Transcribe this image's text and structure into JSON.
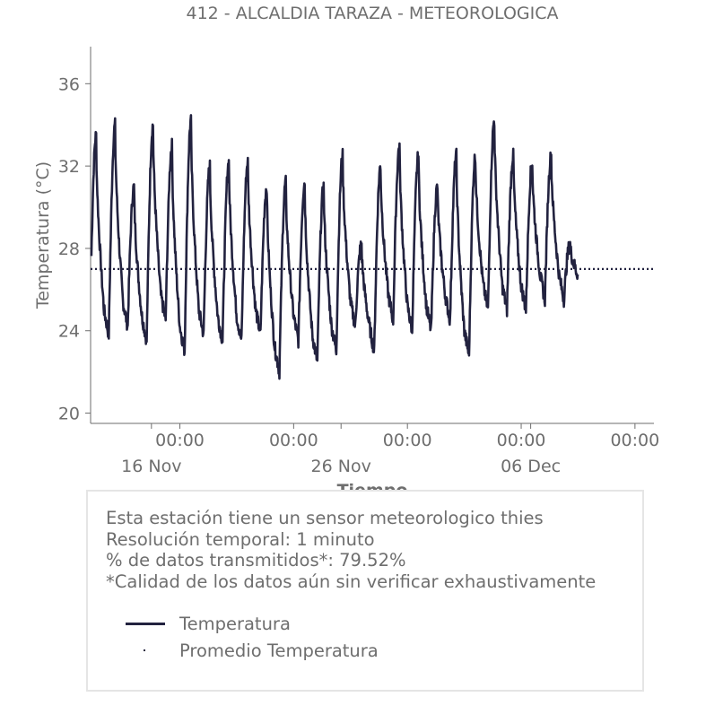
{
  "chart_data": {
    "type": "line",
    "title": "412 - ALCALDIA TARAZA - METEOROLOGICA",
    "xlabel": "Tiempo",
    "ylabel": "Temperatura (°C)",
    "ylim": [
      19.5,
      37.8
    ],
    "yticks": [
      20,
      24,
      28,
      32,
      36
    ],
    "xlim": [
      "2024-11-13T07:00",
      "2024-12-13T00:00"
    ],
    "xtick_hour_labels": [
      "00:00",
      "00:00",
      "00:00",
      "00:00",
      "00:00"
    ],
    "xtick_date_labels": [
      "16 Nov",
      "26 Nov",
      "06 Dec"
    ],
    "grid": false,
    "series": [
      {
        "name": "Temperatura",
        "style": "solid",
        "color": "#22223f",
        "daily_extremes": [
          {
            "date": "2024-11-13",
            "min": 24.0,
            "max": 33.5
          },
          {
            "date": "2024-11-14",
            "min": 23.8,
            "max": 34.0
          },
          {
            "date": "2024-11-15",
            "min": 24.2,
            "max": 31.0
          },
          {
            "date": "2024-11-16",
            "min": 23.5,
            "max": 34.0
          },
          {
            "date": "2024-11-17",
            "min": 24.5,
            "max": 33.0
          },
          {
            "date": "2024-11-18",
            "min": 23.0,
            "max": 34.2
          },
          {
            "date": "2024-11-19",
            "min": 23.8,
            "max": 32.0
          },
          {
            "date": "2024-11-20",
            "min": 23.5,
            "max": 32.2
          },
          {
            "date": "2024-11-21",
            "min": 23.5,
            "max": 32.2
          },
          {
            "date": "2024-11-22",
            "min": 23.8,
            "max": 31.0
          },
          {
            "date": "2024-11-23",
            "min": 22.0,
            "max": 31.2
          },
          {
            "date": "2024-11-24",
            "min": 23.5,
            "max": 31.2
          },
          {
            "date": "2024-11-25",
            "min": 22.5,
            "max": 31.0
          },
          {
            "date": "2024-11-26",
            "min": 23.0,
            "max": 32.5
          },
          {
            "date": "2024-11-27",
            "min": 24.2,
            "max": 28.2
          },
          {
            "date": "2024-11-28",
            "min": 23.0,
            "max": 32.0
          },
          {
            "date": "2024-11-29",
            "min": 24.5,
            "max": 33.0
          },
          {
            "date": "2024-11-30",
            "min": 24.0,
            "max": 32.5
          },
          {
            "date": "2024-12-01",
            "min": 24.0,
            "max": 31.0
          },
          {
            "date": "2024-12-02",
            "min": 24.5,
            "max": 32.5
          },
          {
            "date": "2024-12-03",
            "min": 22.8,
            "max": 32.5
          },
          {
            "date": "2024-12-04",
            "min": 25.0,
            "max": 34.2
          },
          {
            "date": "2024-12-05",
            "min": 25.0,
            "max": 32.5
          },
          {
            "date": "2024-12-06",
            "min": 25.0,
            "max": 32.2
          },
          {
            "date": "2024-12-07",
            "min": 25.5,
            "max": 32.5
          },
          {
            "date": "2024-12-08",
            "min": 25.5,
            "max": 28.2
          }
        ]
      },
      {
        "name": "Promedio Temperatura",
        "style": "dotted",
        "color": "#22223f",
        "value": 27.0
      }
    ]
  },
  "info": {
    "lines": [
      "Esta estación tiene un sensor meteorologico thies",
      "Resolución temporal: 1 minuto",
      "% de datos transmitidos*: 79.52%",
      "*Calidad de los datos aún sin verificar exhaustivamente"
    ]
  }
}
